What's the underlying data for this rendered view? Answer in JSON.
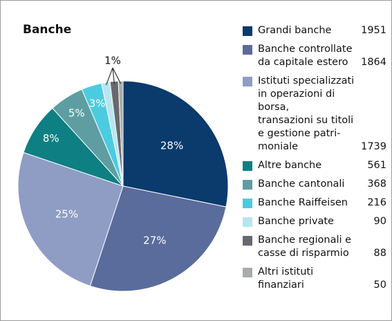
{
  "chart_data": {
    "type": "pie",
    "title": "Banche",
    "categories": [
      "Grandi banche",
      "Banche controllate\nda capitale estero",
      "Istituti specializzati\nin operazioni di borsa,\ntransazioni su titoli\ne gestione patri-\nmoniale",
      "Altre banche",
      "Banche cantonali",
      "Banche Raiffeisen",
      "Banche private",
      "Banche regionali e\ncasse di risparmio",
      "Altri istituti\nfinanziari"
    ],
    "values": [
      1951,
      1864,
      1739,
      561,
      368,
      216,
      90,
      88,
      50
    ],
    "value_labels": [
      "28%",
      "27%",
      "25%",
      "8%",
      "5%",
      "3%",
      null,
      null,
      null
    ],
    "annotation": "1%",
    "colors": [
      "#0b3a6d",
      "#5a6c9c",
      "#8f9dc4",
      "#0e7f82",
      "#5e9ea2",
      "#4ccbe0",
      "#b9e5f0",
      "#666a6e",
      "#a9abad"
    ],
    "legend": "right"
  }
}
